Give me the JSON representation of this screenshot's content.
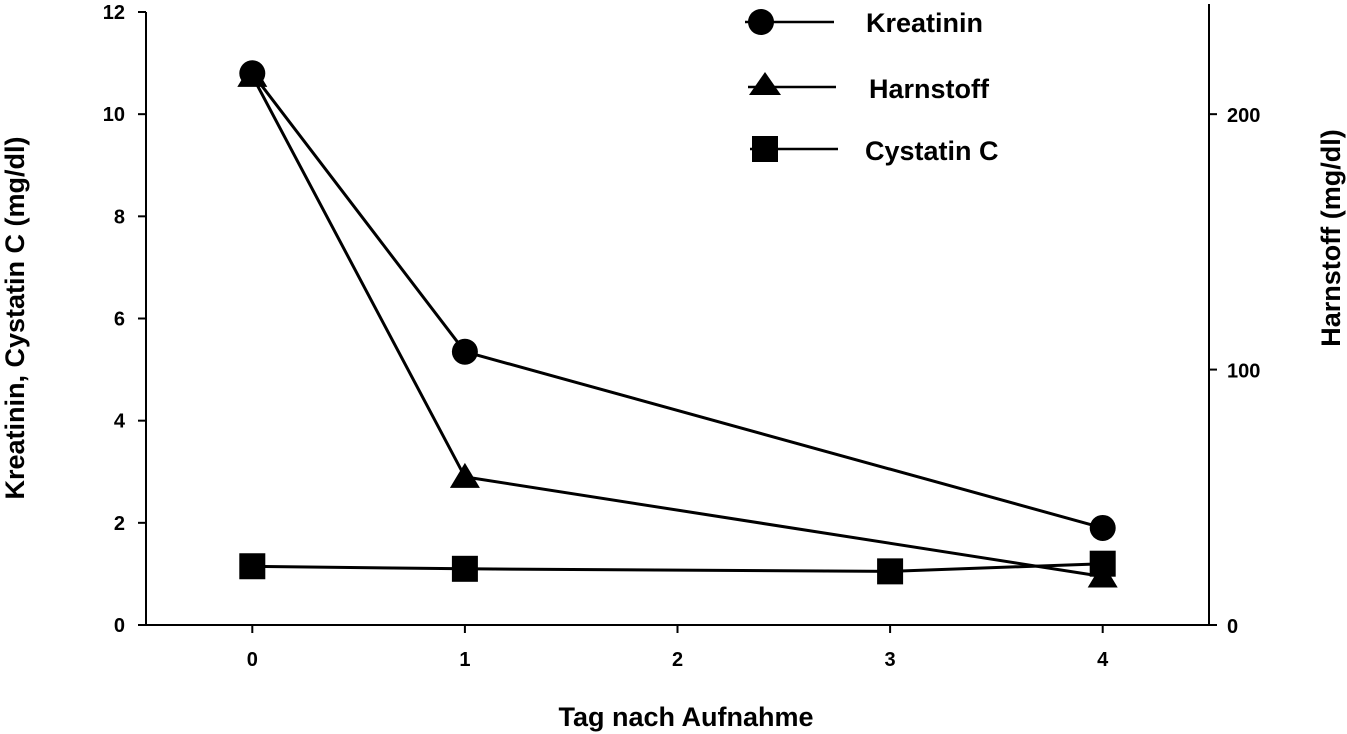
{
  "chart_data": {
    "type": "line",
    "xlabel": "Tag nach Aufnahme",
    "ylabel_left": "Kreatinin, Cystatin C (mg/dl)",
    "ylabel_right": "Harnstoff (mg/dl)",
    "xlim": [
      -0.5,
      4.5
    ],
    "ylim_left": [
      0,
      12
    ],
    "ylim_right": [
      0,
      240
    ],
    "x_ticks": [
      "0",
      "1",
      "2",
      "3",
      "4"
    ],
    "y_left_ticks": [
      "0",
      "2",
      "4",
      "6",
      "8",
      "10",
      "12"
    ],
    "y_right_ticks": [
      "0",
      "100",
      "200"
    ],
    "grid": false,
    "legend_position": "top-right",
    "series": [
      {
        "name": "Kreatinin",
        "axis": "left",
        "marker": "circle",
        "x": [
          0,
          1,
          4
        ],
        "y": [
          10.8,
          5.35,
          1.9
        ]
      },
      {
        "name": "Harnstoff",
        "axis": "right",
        "marker": "triangle",
        "x": [
          0,
          1,
          4
        ],
        "y": [
          215,
          58,
          19
        ]
      },
      {
        "name": "Cystatin C",
        "axis": "left",
        "marker": "square",
        "x": [
          0,
          1,
          3,
          4
        ],
        "y": [
          1.15,
          1.1,
          1.05,
          1.2
        ]
      }
    ]
  }
}
